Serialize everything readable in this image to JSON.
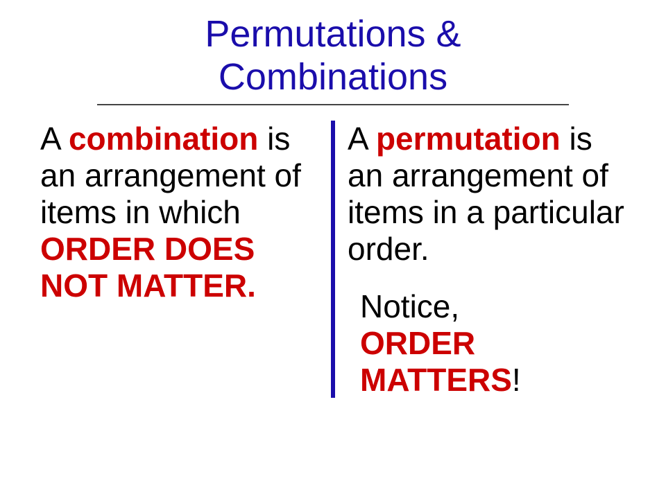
{
  "colors": {
    "title": "#1a0dab",
    "hr": "#444444",
    "divider": "#1a0dab",
    "text_black": "#000000",
    "text_red": "#cc0000"
  },
  "title": {
    "line1": "Permutations &",
    "line2": "Combinations"
  },
  "left": {
    "prefix": "A ",
    "keyword": "combination",
    "mid": " is an arrangement of items in which ",
    "emphasis": "ORDER DOES NOT MATTER."
  },
  "right": {
    "prefix": "A ",
    "keyword": "permutation",
    "mid": " is an arrangement of items in a particular order.",
    "notice_prefix": "Notice, ",
    "notice_emph": "ORDER MATTERS",
    "notice_excl": "!"
  },
  "fontsize": {
    "title": 54,
    "body": 46
  }
}
